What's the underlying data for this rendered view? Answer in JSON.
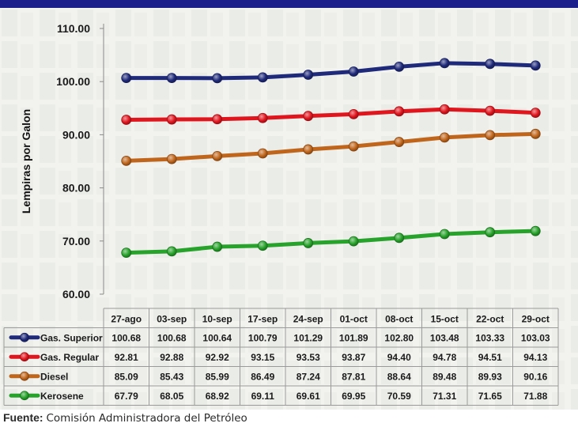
{
  "source": {
    "label": "Fuente:",
    "text": "Comisión Administradora  del Petróleo"
  },
  "chart_data": {
    "type": "line",
    "title": "",
    "xlabel": "",
    "ylabel": "Lempiras por Galon",
    "ylim": [
      60,
      110
    ],
    "yticks": [
      "60.00",
      "70.00",
      "80.00",
      "90.00",
      "100.00",
      "110.00"
    ],
    "grid": false,
    "legend": "table-left",
    "categories": [
      "27-ago",
      "03-sep",
      "10-sep",
      "17-sep",
      "24-sep",
      "01-oct",
      "08-oct",
      "15-oct",
      "22-oct",
      "29-oct"
    ],
    "series": [
      {
        "name": "Gas. Superior",
        "color": "#1f2a7a",
        "values": [
          100.68,
          100.68,
          100.64,
          100.79,
          101.29,
          101.89,
          102.8,
          103.48,
          103.33,
          103.03
        ]
      },
      {
        "name": "Gas. Regular",
        "color": "#e0161e",
        "values": [
          92.81,
          92.88,
          92.92,
          93.15,
          93.53,
          93.87,
          94.4,
          94.78,
          94.51,
          94.13
        ]
      },
      {
        "name": "Diesel",
        "color": "#c0661c",
        "values": [
          85.09,
          85.43,
          85.99,
          86.49,
          87.24,
          87.81,
          88.64,
          89.48,
          89.93,
          90.16
        ]
      },
      {
        "name": "Kerosene",
        "color": "#27a22a",
        "values": [
          67.79,
          68.05,
          68.92,
          69.11,
          69.61,
          69.95,
          70.59,
          71.31,
          71.65,
          71.88
        ]
      }
    ]
  }
}
